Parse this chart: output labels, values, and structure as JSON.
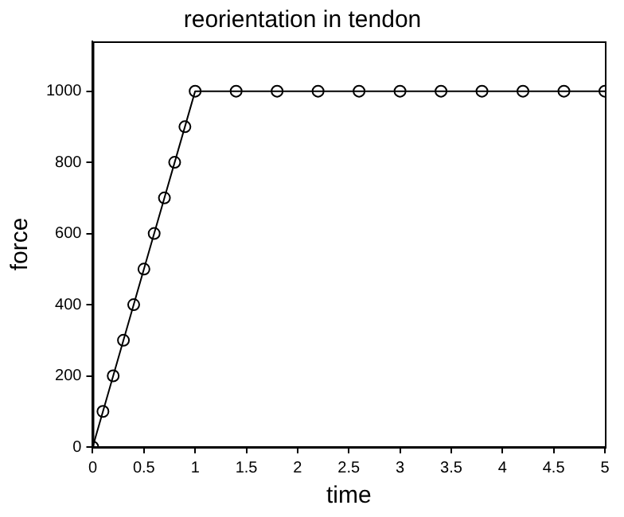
{
  "chart_data": {
    "type": "line",
    "title": "reorientation in tendon",
    "xlabel": "time",
    "ylabel": "force",
    "series": [
      {
        "color": "#000000",
        "x": [
          0,
          0.1,
          0.2,
          0.3,
          0.4,
          0.5,
          0.6,
          0.7,
          0.8,
          0.9,
          1,
          1.4,
          1.8,
          2.2,
          2.6,
          3,
          3.4,
          3.8,
          4.2,
          4.6,
          5
        ],
        "values": [
          0,
          100,
          200,
          300,
          400,
          500,
          600,
          700,
          800,
          900,
          1000,
          1000,
          1000,
          1000,
          1000,
          1000,
          1000,
          1000,
          1000,
          1000,
          1000
        ]
      }
    ],
    "xlim": [
      0,
      5
    ],
    "xticks": [
      0,
      0.5,
      1,
      1.5,
      2,
      2.5,
      3,
      3.5,
      4,
      4.5,
      5
    ],
    "ylim": [
      0,
      1140
    ],
    "yticks": [
      0,
      200,
      400,
      600,
      800,
      1000
    ],
    "grid": false,
    "legend": false,
    "marker": "circle",
    "line_style": "solid"
  }
}
